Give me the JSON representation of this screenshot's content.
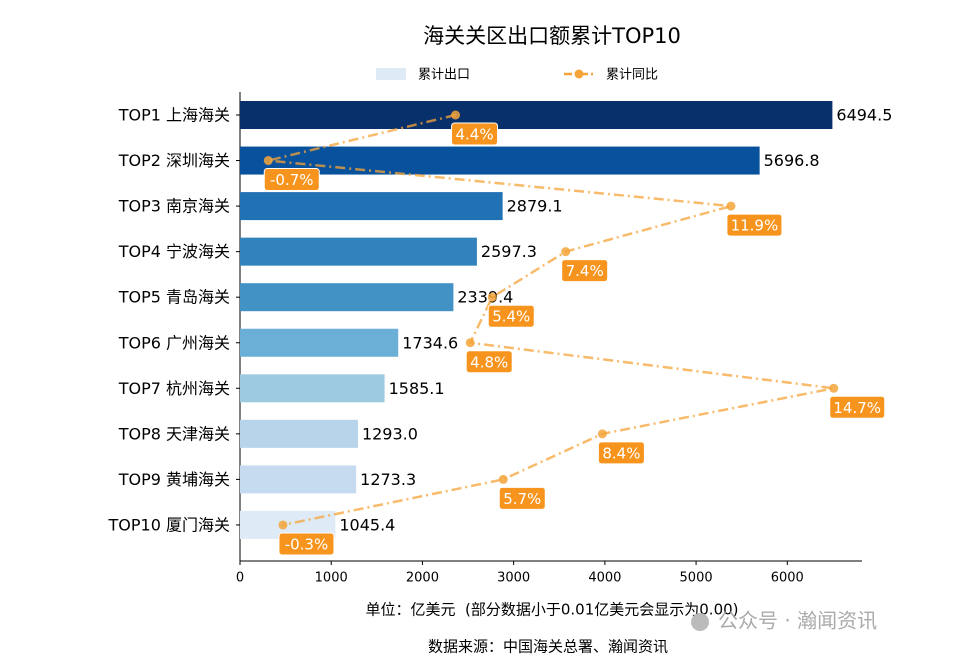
{
  "chart_data": {
    "type": "bar",
    "orientation": "horizontal",
    "title": "海关关区出口额累计TOP10",
    "categories": [
      "TOP1 上海海关",
      "TOP2 深圳海关",
      "TOP3 南京海关",
      "TOP4 宁波海关",
      "TOP5 青岛海关",
      "TOP6 广州海关",
      "TOP7 杭州海关",
      "TOP8 天津海关",
      "TOP9 黄埔海关",
      "TOP10 厦门海关"
    ],
    "series": [
      {
        "name": "累计出口",
        "type": "bar",
        "color": "#deebf7",
        "colors": [
          "#08306b",
          "#08519c",
          "#2171b5",
          "#3182bd",
          "#4292c6",
          "#6baed6",
          "#9ecae1",
          "#b7d4ea",
          "#c6dbef",
          "#deebf7"
        ],
        "values": [
          6494.5,
          5696.8,
          2879.1,
          2597.3,
          2339.4,
          1734.6,
          1585.1,
          1293.0,
          1273.3,
          1045.4
        ],
        "value_labels": [
          "6494.5",
          "5696.8",
          "2879.1",
          "2597.3",
          "2339.4",
          "1734.6",
          "1585.1",
          "1293.0",
          "1273.3",
          "1045.4"
        ]
      },
      {
        "name": "累计同比",
        "type": "line",
        "axis": "x2",
        "color": "#f5a43a",
        "label_color": "#f7941d",
        "values": [
          4.4,
          -0.7,
          11.9,
          7.4,
          5.4,
          4.8,
          14.7,
          8.4,
          5.7,
          -0.3
        ],
        "value_labels": [
          "4.4%",
          "-0.7%",
          "11.9%",
          "7.4%",
          "5.4%",
          "4.8%",
          "14.7%",
          "8.4%",
          "5.7%",
          "-0.3%"
        ]
      }
    ],
    "xlim": [
      0,
      6819
    ],
    "xticks": [
      0,
      1000,
      2000,
      3000,
      4000,
      5000,
      6000
    ],
    "x2lim": [
      -1.47,
      15.47
    ],
    "xlabel": "单位：亿美元  (部分数据小于0.01亿美元会显示为0.00)",
    "source": "数据来源：中国海关总署、瀚闻资讯",
    "watermark": "公众号 · 瀚闻资讯"
  }
}
